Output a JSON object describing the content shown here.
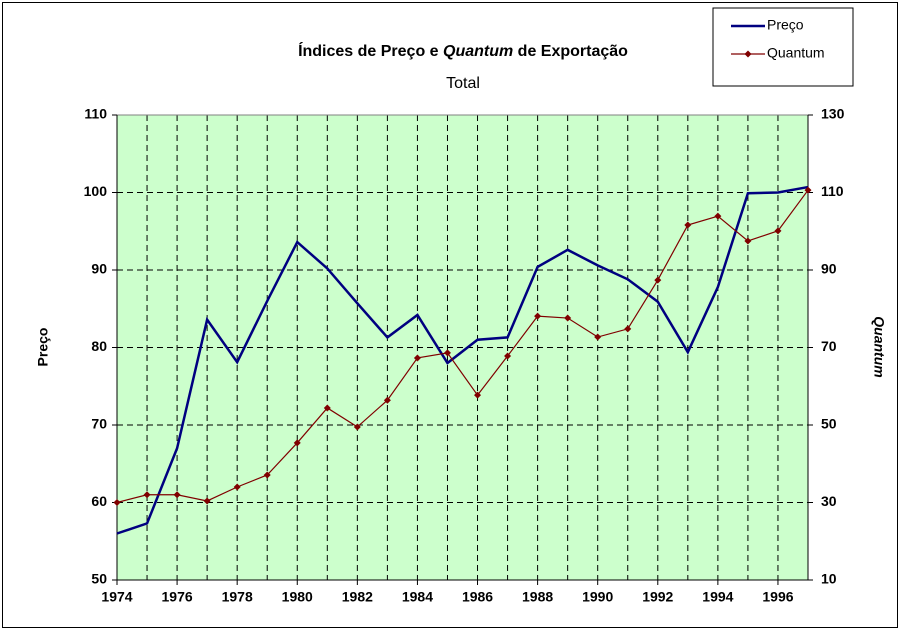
{
  "chart_data": {
    "type": "line",
    "title_parts": [
      "Índices de Preço e ",
      "Quantum",
      " de Exportação"
    ],
    "subtitle": "Total",
    "ylabel": "Preço",
    "y2label": "Quantum",
    "x": [
      1974,
      1975,
      1976,
      1977,
      1978,
      1979,
      1980,
      1981,
      1982,
      1983,
      1984,
      1985,
      1986,
      1987,
      1988,
      1989,
      1990,
      1991,
      1992,
      1993,
      1994,
      1995,
      1996,
      1997
    ],
    "xlim": [
      1974,
      1997
    ],
    "xticks": [
      1974,
      1976,
      1978,
      1980,
      1982,
      1984,
      1986,
      1988,
      1990,
      1992,
      1994,
      1996
    ],
    "ylim": [
      50,
      110
    ],
    "yticks": [
      50,
      60,
      70,
      80,
      90,
      100,
      110
    ],
    "y2lim": [
      10,
      130
    ],
    "y2ticks": [
      10,
      30,
      50,
      70,
      90,
      110,
      130
    ],
    "grid": true,
    "legend": "upper right",
    "series": [
      {
        "name": "Preço",
        "color": "#000080",
        "values": [
          56,
          57.3,
          67,
          83.6,
          78.1,
          86,
          93.6,
          90.2,
          85.7,
          81.3,
          84.2,
          78,
          81,
          81.3,
          90.4,
          92.6,
          90.6,
          88.8,
          85.9,
          79.4,
          87.8,
          99.9,
          100,
          100.7
        ]
      },
      {
        "name": "Quantum",
        "color": "#800000",
        "axis": "y2",
        "marker": "diamond",
        "values": [
          30,
          32,
          32,
          30.4,
          34,
          37.1,
          45.4,
          54.4,
          49.5,
          56.4,
          67.3,
          68.6,
          57.7,
          67.8,
          78.1,
          77.6,
          72.7,
          74.8,
          87.4,
          101.6,
          103.9,
          97.5,
          100.1,
          110.6
        ]
      }
    ]
  }
}
